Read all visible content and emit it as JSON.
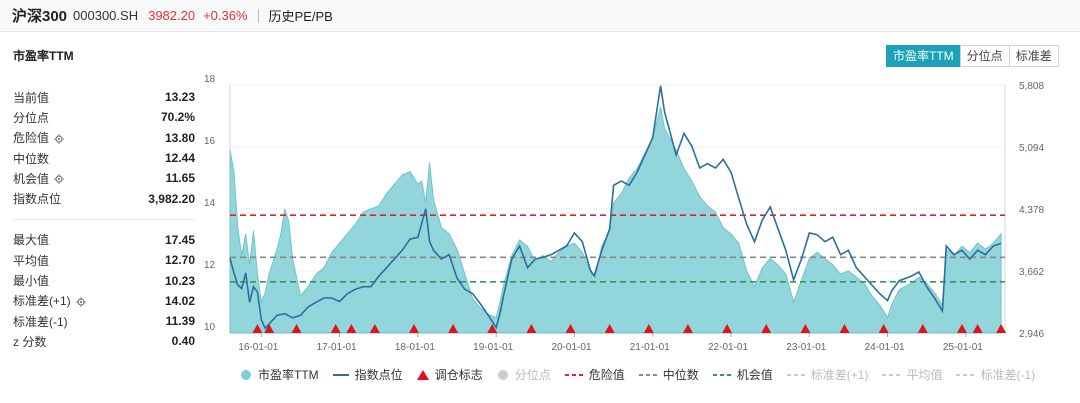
{
  "header": {
    "index_name": "沪深300",
    "code": "000300.SH",
    "price": "3982.20",
    "change": "+0.36%",
    "history_link": "历史PE/PB"
  },
  "panel": {
    "title": "市盈率TTM",
    "tabs": [
      {
        "label": "市盈率TTM",
        "active": true
      },
      {
        "label": "分位点",
        "active": false
      },
      {
        "label": "标准差",
        "active": false
      }
    ]
  },
  "stats_top": [
    {
      "label": "当前值",
      "value": "13.23",
      "gear": false
    },
    {
      "label": "分位点",
      "value": "70.2%",
      "gear": false
    },
    {
      "label": "危险值",
      "value": "13.80",
      "gear": true
    },
    {
      "label": "中位数",
      "value": "12.44",
      "gear": false
    },
    {
      "label": "机会值",
      "value": "11.65",
      "gear": true
    },
    {
      "label": "指数点位",
      "value": "3,982.20",
      "gear": false
    }
  ],
  "stats_bottom": [
    {
      "label": "最大值",
      "value": "17.45",
      "gear": false
    },
    {
      "label": "平均值",
      "value": "12.70",
      "gear": false
    },
    {
      "label": "最小值",
      "value": "10.23",
      "gear": false
    },
    {
      "label": "标准差(+1)",
      "value": "14.02",
      "gear": true
    },
    {
      "label": "标准差(-1)",
      "value": "11.39",
      "gear": false
    },
    {
      "label": "z 分数",
      "value": "0.40",
      "gear": false
    }
  ],
  "legend": [
    {
      "label": "市盈率TTM",
      "kind": "dot",
      "color": "#7fcfd6",
      "on": true
    },
    {
      "label": "指数点位",
      "kind": "line",
      "color": "#2a6f9e",
      "on": true
    },
    {
      "label": "调仓标志",
      "kind": "triangle",
      "color": "#e0121b",
      "on": true
    },
    {
      "label": "分位点",
      "kind": "dot",
      "color": "#cccccc",
      "on": false
    },
    {
      "label": "危险值",
      "kind": "dash",
      "color": "#d9242a",
      "on": true
    },
    {
      "label": "中位数",
      "kind": "dash",
      "color": "#888888",
      "on": true
    },
    {
      "label": "机会值",
      "kind": "dash",
      "color": "#2a9d5c",
      "on": true
    },
    {
      "label": "标准差(+1)",
      "kind": "dash",
      "color": "#cccccc",
      "on": false
    },
    {
      "label": "平均值",
      "kind": "dash",
      "color": "#cccccc",
      "on": false
    },
    {
      "label": "标准差(-1)",
      "kind": "dash",
      "color": "#cccccc",
      "on": false
    }
  ],
  "chart_data": {
    "type": "area",
    "x_ticks": [
      "16-01-01",
      "17-01-01",
      "18-01-01",
      "19-01-01",
      "20-01-01",
      "21-01-01",
      "22-01-01",
      "23-01-01",
      "24-01-01",
      "25-01-01"
    ],
    "x_range": [
      2015.6,
      2025.5
    ],
    "y_left_ticks": [
      "10",
      "12",
      "14",
      "16",
      "18"
    ],
    "y_left_range": [
      10,
      18
    ],
    "y_right_ticks": [
      "2,946",
      "3,662",
      "4,378",
      "5,094",
      "5,808"
    ],
    "y_right_range": [
      2946,
      5808
    ],
    "reference_lines": [
      {
        "name": "危险值",
        "value": 13.8,
        "color": "#d9242a"
      },
      {
        "name": "中位数",
        "value": 12.44,
        "color": "#888888"
      },
      {
        "name": "机会值",
        "value": 11.65,
        "color": "#2a9d5c"
      }
    ],
    "series": [
      {
        "name": "市盈率TTM",
        "axis": "left",
        "color": "#7fcfd6",
        "points": [
          [
            2015.6,
            15.9
          ],
          [
            2015.65,
            15.2
          ],
          [
            2015.7,
            13.4
          ],
          [
            2015.75,
            12.5
          ],
          [
            2015.8,
            13.2
          ],
          [
            2015.85,
            12.2
          ],
          [
            2015.9,
            13.3
          ],
          [
            2015.95,
            11.9
          ],
          [
            2016.0,
            11.0
          ],
          [
            2016.05,
            11.3
          ],
          [
            2016.1,
            11.9
          ],
          [
            2016.15,
            12.3
          ],
          [
            2016.2,
            12.7
          ],
          [
            2016.25,
            13.2
          ],
          [
            2016.3,
            14.0
          ],
          [
            2016.35,
            13.6
          ],
          [
            2016.4,
            12.4
          ],
          [
            2016.5,
            11.2
          ],
          [
            2016.6,
            11.5
          ],
          [
            2016.7,
            11.9
          ],
          [
            2016.8,
            12.1
          ],
          [
            2016.9,
            12.6
          ],
          [
            2017.0,
            12.9
          ],
          [
            2017.1,
            13.2
          ],
          [
            2017.2,
            13.5
          ],
          [
            2017.3,
            13.9
          ],
          [
            2017.4,
            14.0
          ],
          [
            2017.5,
            14.1
          ],
          [
            2017.6,
            14.5
          ],
          [
            2017.7,
            14.8
          ],
          [
            2017.8,
            15.1
          ],
          [
            2017.9,
            15.2
          ],
          [
            2018.0,
            14.8
          ],
          [
            2018.05,
            14.9
          ],
          [
            2018.1,
            14.2
          ],
          [
            2018.15,
            15.5
          ],
          [
            2018.2,
            14.3
          ],
          [
            2018.3,
            13.4
          ],
          [
            2018.4,
            13.2
          ],
          [
            2018.5,
            12.7
          ],
          [
            2018.6,
            11.9
          ],
          [
            2018.7,
            11.1
          ],
          [
            2018.8,
            10.8
          ],
          [
            2018.9,
            10.6
          ],
          [
            2019.0,
            10.5
          ],
          [
            2019.05,
            11.0
          ],
          [
            2019.1,
            11.6
          ],
          [
            2019.2,
            12.5
          ],
          [
            2019.3,
            13.0
          ],
          [
            2019.4,
            12.8
          ],
          [
            2019.5,
            12.3
          ],
          [
            2019.6,
            12.5
          ],
          [
            2019.7,
            12.3
          ],
          [
            2019.8,
            12.6
          ],
          [
            2019.9,
            12.8
          ],
          [
            2020.0,
            12.9
          ],
          [
            2020.1,
            12.6
          ],
          [
            2020.2,
            12.0
          ],
          [
            2020.25,
            11.6
          ],
          [
            2020.35,
            12.8
          ],
          [
            2020.45,
            13.3
          ],
          [
            2020.5,
            14.2
          ],
          [
            2020.6,
            14.5
          ],
          [
            2020.7,
            15.0
          ],
          [
            2020.8,
            15.3
          ],
          [
            2020.9,
            15.8
          ],
          [
            2021.0,
            16.3
          ],
          [
            2021.1,
            17.3
          ],
          [
            2021.15,
            16.6
          ],
          [
            2021.3,
            15.9
          ],
          [
            2021.4,
            15.3
          ],
          [
            2021.5,
            14.9
          ],
          [
            2021.6,
            14.4
          ],
          [
            2021.7,
            14.1
          ],
          [
            2021.8,
            13.9
          ],
          [
            2021.9,
            13.4
          ],
          [
            2022.0,
            13.2
          ],
          [
            2022.1,
            12.9
          ],
          [
            2022.2,
            12.0
          ],
          [
            2022.3,
            11.5
          ],
          [
            2022.4,
            12.1
          ],
          [
            2022.5,
            12.4
          ],
          [
            2022.6,
            12.2
          ],
          [
            2022.7,
            11.9
          ],
          [
            2022.8,
            11.0
          ],
          [
            2022.9,
            11.7
          ],
          [
            2023.0,
            12.4
          ],
          [
            2023.1,
            12.6
          ],
          [
            2023.2,
            12.4
          ],
          [
            2023.3,
            12.2
          ],
          [
            2023.4,
            11.9
          ],
          [
            2023.5,
            12.0
          ],
          [
            2023.6,
            11.8
          ],
          [
            2023.7,
            11.6
          ],
          [
            2023.8,
            11.2
          ],
          [
            2023.9,
            10.9
          ],
          [
            2024.0,
            10.5
          ],
          [
            2024.05,
            10.9
          ],
          [
            2024.15,
            11.4
          ],
          [
            2024.3,
            11.6
          ],
          [
            2024.4,
            11.8
          ],
          [
            2024.5,
            11.6
          ],
          [
            2024.6,
            11.3
          ],
          [
            2024.7,
            10.9
          ],
          [
            2024.75,
            12.7
          ],
          [
            2024.85,
            12.5
          ],
          [
            2024.95,
            12.8
          ],
          [
            2025.05,
            12.6
          ],
          [
            2025.15,
            12.9
          ],
          [
            2025.25,
            12.7
          ],
          [
            2025.35,
            12.9
          ],
          [
            2025.45,
            13.2
          ]
        ]
      },
      {
        "name": "指数点位",
        "axis": "right",
        "color": "#2a6f9e",
        "points": [
          [
            2015.6,
            3810
          ],
          [
            2015.65,
            3640
          ],
          [
            2015.7,
            3500
          ],
          [
            2015.75,
            3460
          ],
          [
            2015.8,
            3640
          ],
          [
            2015.85,
            3300
          ],
          [
            2015.9,
            3480
          ],
          [
            2015.95,
            3420
          ],
          [
            2016.0,
            3100
          ],
          [
            2016.05,
            3000
          ],
          [
            2016.1,
            3050
          ],
          [
            2016.2,
            3150
          ],
          [
            2016.3,
            3170
          ],
          [
            2016.4,
            3120
          ],
          [
            2016.5,
            3150
          ],
          [
            2016.6,
            3250
          ],
          [
            2016.7,
            3300
          ],
          [
            2016.8,
            3350
          ],
          [
            2016.9,
            3350
          ],
          [
            2017.0,
            3310
          ],
          [
            2017.1,
            3400
          ],
          [
            2017.2,
            3450
          ],
          [
            2017.3,
            3480
          ],
          [
            2017.4,
            3480
          ],
          [
            2017.5,
            3600
          ],
          [
            2017.6,
            3700
          ],
          [
            2017.7,
            3800
          ],
          [
            2017.8,
            3900
          ],
          [
            2017.9,
            4030
          ],
          [
            2018.0,
            4050
          ],
          [
            2018.1,
            4380
          ],
          [
            2018.15,
            4000
          ],
          [
            2018.2,
            3900
          ],
          [
            2018.3,
            3800
          ],
          [
            2018.4,
            3850
          ],
          [
            2018.5,
            3580
          ],
          [
            2018.6,
            3450
          ],
          [
            2018.7,
            3400
          ],
          [
            2018.8,
            3280
          ],
          [
            2018.9,
            3150
          ],
          [
            2019.0,
            3010
          ],
          [
            2019.05,
            3180
          ],
          [
            2019.1,
            3400
          ],
          [
            2019.2,
            3800
          ],
          [
            2019.3,
            3950
          ],
          [
            2019.4,
            3700
          ],
          [
            2019.5,
            3800
          ],
          [
            2019.6,
            3820
          ],
          [
            2019.7,
            3850
          ],
          [
            2019.8,
            3900
          ],
          [
            2019.9,
            3950
          ],
          [
            2020.0,
            4100
          ],
          [
            2020.1,
            4000
          ],
          [
            2020.2,
            3680
          ],
          [
            2020.25,
            3600
          ],
          [
            2020.35,
            3900
          ],
          [
            2020.45,
            4150
          ],
          [
            2020.5,
            4650
          ],
          [
            2020.6,
            4700
          ],
          [
            2020.7,
            4650
          ],
          [
            2020.8,
            4800
          ],
          [
            2020.9,
            5000
          ],
          [
            2021.0,
            5200
          ],
          [
            2021.1,
            5800
          ],
          [
            2021.15,
            5500
          ],
          [
            2021.3,
            5000
          ],
          [
            2021.4,
            5250
          ],
          [
            2021.5,
            5100
          ],
          [
            2021.6,
            4850
          ],
          [
            2021.7,
            4900
          ],
          [
            2021.8,
            4850
          ],
          [
            2021.9,
            4950
          ],
          [
            2022.0,
            4800
          ],
          [
            2022.1,
            4500
          ],
          [
            2022.2,
            4200
          ],
          [
            2022.3,
            4000
          ],
          [
            2022.4,
            4250
          ],
          [
            2022.5,
            4400
          ],
          [
            2022.6,
            4150
          ],
          [
            2022.7,
            3900
          ],
          [
            2022.8,
            3560
          ],
          [
            2022.9,
            3800
          ],
          [
            2023.0,
            4100
          ],
          [
            2023.1,
            4080
          ],
          [
            2023.2,
            4000
          ],
          [
            2023.3,
            4050
          ],
          [
            2023.4,
            3850
          ],
          [
            2023.5,
            3900
          ],
          [
            2023.6,
            3700
          ],
          [
            2023.7,
            3600
          ],
          [
            2023.8,
            3500
          ],
          [
            2023.9,
            3400
          ],
          [
            2024.0,
            3320
          ],
          [
            2024.05,
            3430
          ],
          [
            2024.15,
            3550
          ],
          [
            2024.3,
            3600
          ],
          [
            2024.4,
            3650
          ],
          [
            2024.5,
            3480
          ],
          [
            2024.6,
            3350
          ],
          [
            2024.7,
            3200
          ],
          [
            2024.75,
            3950
          ],
          [
            2024.85,
            3850
          ],
          [
            2024.95,
            3900
          ],
          [
            2025.05,
            3800
          ],
          [
            2025.15,
            3900
          ],
          [
            2025.25,
            3850
          ],
          [
            2025.35,
            3950
          ],
          [
            2025.45,
            3982
          ]
        ]
      }
    ],
    "adjust_markers_x": [
      2015.95,
      2016.1,
      2016.45,
      2016.95,
      2017.15,
      2017.45,
      2017.95,
      2018.45,
      2018.95,
      2019.45,
      2019.95,
      2020.45,
      2020.95,
      2021.45,
      2021.95,
      2022.45,
      2022.95,
      2023.45,
      2023.95,
      2024.45,
      2024.95,
      2025.15,
      2025.45
    ]
  }
}
